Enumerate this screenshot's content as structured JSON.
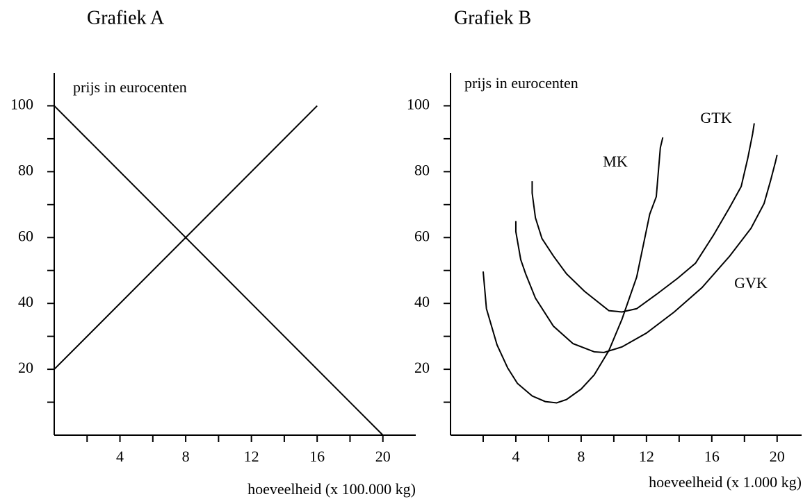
{
  "chart_data": [
    {
      "type": "line",
      "title": "Grafiek A",
      "y_label": "prijs in eurocenten",
      "x_label": "hoeveelheid (x 100.000 kg)",
      "xlim": [
        0,
        22
      ],
      "ylim": [
        0,
        110
      ],
      "xticks": [
        4,
        8,
        12,
        16,
        20
      ],
      "xminor": [
        2,
        6,
        10,
        14,
        18
      ],
      "yticks": [
        20,
        40,
        60,
        80,
        100
      ],
      "yminor": [
        10,
        30,
        50,
        70,
        90
      ],
      "series": [
        {
          "color": "#000000",
          "x": [
            0,
            20
          ],
          "values": [
            100,
            0
          ]
        },
        {
          "color": "#000000",
          "x": [
            0,
            16
          ],
          "values": [
            20,
            100
          ]
        }
      ]
    },
    {
      "type": "line",
      "title": "Grafiek B",
      "y_label": "prijs in eurocenten",
      "x_label": "hoeveelheid (x 1.000 kg)",
      "xlim": [
        0,
        21.5
      ],
      "ylim": [
        0,
        110
      ],
      "xticks": [
        4,
        8,
        12,
        16,
        20
      ],
      "xminor": [
        2,
        6,
        10,
        14,
        18
      ],
      "yticks": [
        20,
        40,
        60,
        80,
        100
      ],
      "yminor": [
        10,
        30,
        50,
        70,
        90
      ],
      "series": [
        {
          "name": "MK",
          "color": "#000000",
          "x": [
            2.0,
            2.2,
            2.85,
            3.5,
            4.1,
            5.0,
            5.8,
            6.5,
            7.1,
            8.0,
            8.8,
            9.7,
            10.5,
            11.4,
            12.2,
            12.6,
            12.85,
            13.0
          ],
          "values": [
            49.7,
            38.4,
            27.4,
            20.4,
            15.7,
            11.9,
            10.2,
            9.8,
            10.8,
            14.0,
            18.3,
            25.7,
            35.2,
            48.0,
            67.1,
            72.4,
            87.3,
            90.4
          ]
        },
        {
          "name": "GTK",
          "color": "#000000",
          "x": [
            5.0,
            5.0,
            5.2,
            5.6,
            6.3,
            7.1,
            8.2,
            9.7,
            10.5,
            11.4,
            12.6,
            13.9,
            15.0,
            16.1,
            17.1,
            17.8,
            18.2,
            18.5,
            18.6
          ],
          "values": [
            77.1,
            73.5,
            66.0,
            59.7,
            54.4,
            49.0,
            43.7,
            37.8,
            37.4,
            38.4,
            42.7,
            47.6,
            52.2,
            60.7,
            69.2,
            75.5,
            84.0,
            91.5,
            94.7
          ]
        },
        {
          "name": "GVK",
          "color": "#000000",
          "x": [
            4.0,
            4.0,
            4.3,
            4.6,
            5.2,
            6.3,
            7.5,
            8.8,
            9.4,
            10.5,
            12.0,
            13.7,
            15.4,
            17.1,
            18.4,
            19.2,
            19.6,
            19.9,
            20.0
          ],
          "values": [
            65.0,
            61.8,
            53.3,
            49.0,
            41.6,
            33.1,
            27.8,
            25.3,
            25.1,
            26.8,
            31.0,
            37.4,
            44.8,
            54.4,
            62.8,
            70.3,
            77.3,
            83.0,
            85.1
          ]
        }
      ]
    }
  ]
}
